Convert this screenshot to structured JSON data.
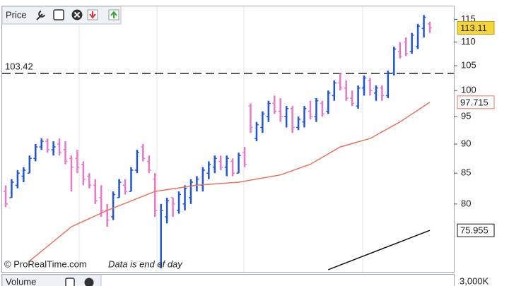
{
  "chart_data": {
    "type": "ohlc",
    "title": "Price",
    "yscale": "log",
    "ylim": [
      70,
      118
    ],
    "yticks": [
      80,
      85,
      90,
      95,
      100,
      105,
      110,
      115
    ],
    "up_color": "#1f55d6",
    "down_color": "#e67ac8",
    "bars": {
      "open": [
        82,
        81,
        83,
        84.5,
        85,
        87.5,
        89.5,
        90.5,
        89,
        90,
        89,
        87.5,
        87.5,
        86.5,
        84.5,
        83,
        81,
        79,
        78,
        81,
        83,
        82,
        85.5,
        89.5,
        87,
        84,
        71,
        78,
        81,
        79,
        80,
        81,
        83,
        83,
        85,
        86,
        87,
        86,
        87,
        85,
        88.5,
        97,
        91,
        93,
        95,
        97.5,
        96,
        95,
        96.5,
        93,
        94,
        96,
        95,
        97.5,
        96,
        99,
        101.5,
        100.5,
        98.5,
        97,
        100.5,
        102,
        99.5,
        100.5,
        99,
        103.5,
        108,
        110,
        108,
        109,
        113,
        114
      ],
      "high": [
        83,
        84,
        85.5,
        86,
        88,
        90,
        91,
        91,
        90.5,
        91,
        90.5,
        88,
        89,
        87,
        85,
        84,
        83,
        80,
        82,
        84,
        84,
        86,
        89,
        90,
        88,
        85,
        80,
        81,
        81,
        82,
        83,
        84,
        84.5,
        86,
        87,
        88,
        88,
        88,
        87.5,
        88.5,
        89.5,
        97.5,
        94,
        96,
        98,
        99,
        98.5,
        97,
        97,
        95,
        97,
        98,
        98.5,
        98,
        100,
        102,
        103.5,
        102,
        100,
        101,
        103,
        102.5,
        101,
        101,
        104,
        109,
        110,
        111,
        112,
        114,
        116,
        114.5
      ],
      "low": [
        79.5,
        81,
        82.5,
        83.5,
        85,
        87,
        89,
        88.5,
        88,
        88,
        86.5,
        82,
        85,
        83,
        82.5,
        80,
        78,
        76.5,
        77.5,
        81,
        81.5,
        82,
        85,
        87,
        85,
        78,
        70.5,
        77,
        78,
        78.5,
        79,
        80,
        82,
        82,
        84,
        85,
        85.5,
        84.5,
        84.5,
        85,
        86,
        92,
        90.5,
        92,
        94,
        95.5,
        94,
        93,
        92,
        92.5,
        93,
        94.5,
        94,
        95,
        95.5,
        98,
        100,
        98,
        97,
        96.5,
        99,
        99,
        98,
        98,
        98.5,
        103,
        106.5,
        107,
        107.5,
        108.5,
        111,
        112
      ],
      "close": [
        80,
        83.5,
        85,
        85.5,
        87.5,
        89.5,
        90.5,
        89,
        89.5,
        88.5,
        87,
        86,
        86,
        84,
        83,
        80.5,
        79,
        77.5,
        81.5,
        83.5,
        82,
        85.5,
        88.5,
        87.5,
        85.5,
        79,
        79,
        80.5,
        80,
        81.5,
        82.5,
        83.5,
        84,
        85.5,
        86.5,
        87.5,
        86,
        87.5,
        85,
        88,
        86.5,
        93,
        93.5,
        95.5,
        97.5,
        96,
        95,
        96.5,
        93,
        94.5,
        96.5,
        95,
        98,
        95.5,
        99.5,
        101.5,
        100.5,
        98.5,
        97.5,
        100.5,
        102.5,
        100,
        100.5,
        99,
        103.5,
        108.5,
        107,
        107.5,
        111.5,
        113.5,
        115.5,
        113.11
      ]
    },
    "lines": [
      {
        "color": "#e8735e",
        "x": [
          4,
          11,
          17,
          25,
          32,
          39,
          46,
          51,
          56,
          61,
          66,
          71
        ],
        "values": [
          71.5,
          76.5,
          79,
          82,
          83,
          83.5,
          84.7,
          86.5,
          89.5,
          91,
          94,
          97.715
        ]
      },
      {
        "color": "#111111",
        "x": [
          54,
          71
        ],
        "values": [
          70.3,
          75.955
        ]
      }
    ],
    "hline": 103.42
  },
  "footer": {
    "copyright": "© ProRealTime.com",
    "note": "Data is end of day"
  },
  "volume_panel": {
    "title": "Volume",
    "tick_label": "3,000K"
  }
}
